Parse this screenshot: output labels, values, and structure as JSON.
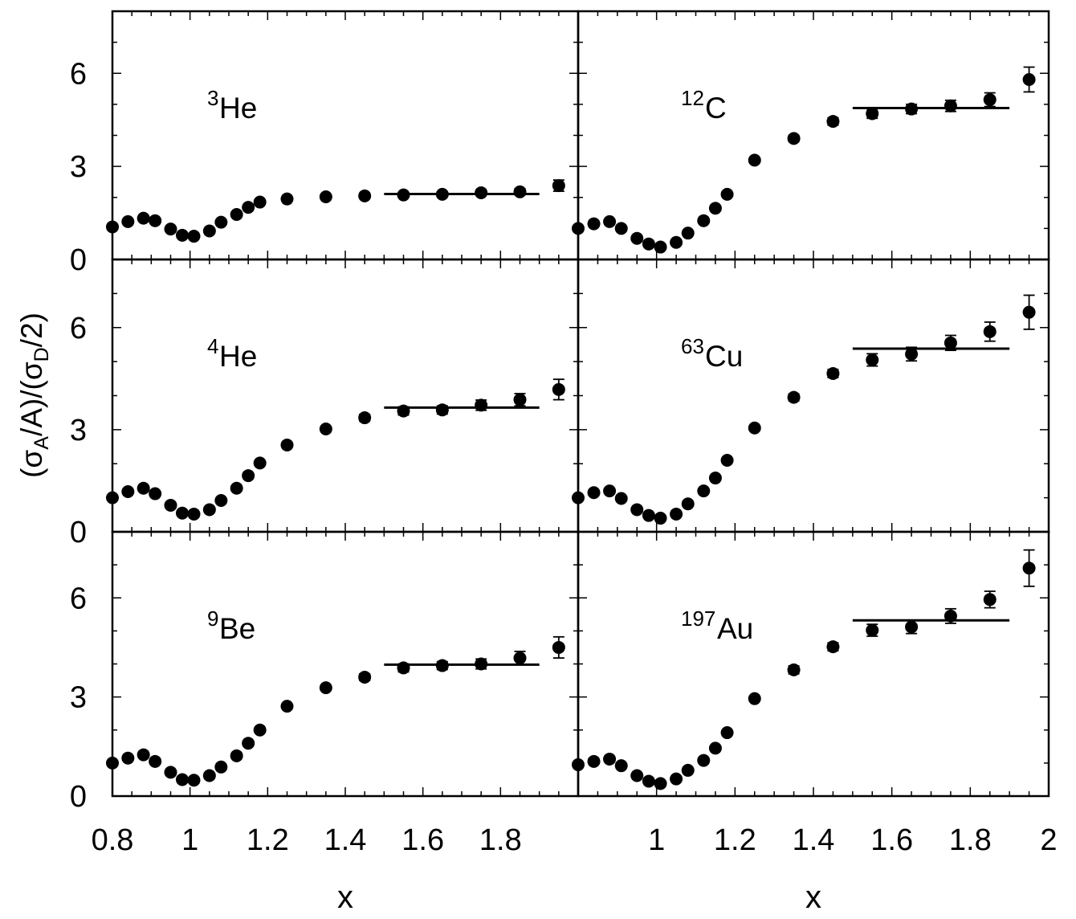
{
  "chart_data": {
    "type": "scatter",
    "ylabel_parts": {
      "open": "(σ",
      "sub_a": "A",
      "mid": "/A)/(σ",
      "sub_d": "D",
      "close": "/2)"
    },
    "columns": [
      {
        "xlabel": "x",
        "xlim": [
          0.8,
          2.0
        ],
        "xticks_major": [
          0.8,
          1.0,
          1.2,
          1.4,
          1.6,
          1.8
        ],
        "xtick_labels": [
          "0.8",
          "1",
          "1.2",
          "1.4",
          "1.6",
          "1.8"
        ]
      },
      {
        "xlabel": "x",
        "xlim": [
          0.8,
          2.0
        ],
        "xticks_major": [
          1.0,
          1.2,
          1.4,
          1.6,
          1.8,
          2.0
        ],
        "xtick_labels": [
          "1",
          "1.2",
          "1.4",
          "1.6",
          "1.8",
          "2"
        ]
      }
    ],
    "rows": [
      {
        "ylim": [
          0,
          8
        ],
        "yticks": [
          0,
          3,
          6
        ],
        "ytick_labels": [
          "0",
          "3",
          "6"
        ]
      },
      {
        "ylim": [
          0,
          8
        ],
        "yticks": [
          0,
          3,
          6
        ],
        "ytick_labels": [
          "0",
          "3",
          "6"
        ]
      },
      {
        "ylim": [
          0,
          8
        ],
        "yticks": [
          0,
          3,
          6
        ],
        "ytick_labels": [
          "0",
          "3",
          "6"
        ]
      }
    ],
    "panels": [
      {
        "row": 0,
        "col": 0,
        "label_sup": "3",
        "label_main": "He",
        "points": [
          {
            "x": 0.8,
            "y": 1.05,
            "err": 0.05
          },
          {
            "x": 0.84,
            "y": 1.22,
            "err": 0.05
          },
          {
            "x": 0.88,
            "y": 1.33,
            "err": 0.05
          },
          {
            "x": 0.91,
            "y": 1.25,
            "err": 0.05
          },
          {
            "x": 0.95,
            "y": 0.98,
            "err": 0.05
          },
          {
            "x": 0.98,
            "y": 0.78,
            "err": 0.05
          },
          {
            "x": 1.01,
            "y": 0.75,
            "err": 0.05
          },
          {
            "x": 1.05,
            "y": 0.92,
            "err": 0.05
          },
          {
            "x": 1.08,
            "y": 1.2,
            "err": 0.05
          },
          {
            "x": 1.12,
            "y": 1.45,
            "err": 0.05
          },
          {
            "x": 1.15,
            "y": 1.68,
            "err": 0.05
          },
          {
            "x": 1.18,
            "y": 1.85,
            "err": 0.05
          },
          {
            "x": 1.25,
            "y": 1.95,
            "err": 0.05
          },
          {
            "x": 1.35,
            "y": 2.02,
            "err": 0.05
          },
          {
            "x": 1.45,
            "y": 2.05,
            "err": 0.06
          },
          {
            "x": 1.55,
            "y": 2.08,
            "err": 0.07
          },
          {
            "x": 1.65,
            "y": 2.1,
            "err": 0.07
          },
          {
            "x": 1.75,
            "y": 2.15,
            "err": 0.08
          },
          {
            "x": 1.85,
            "y": 2.18,
            "err": 0.1
          },
          {
            "x": 1.95,
            "y": 2.38,
            "err": 0.18
          }
        ],
        "plateau": {
          "x1": 1.5,
          "x2": 1.9,
          "y": 2.11
        }
      },
      {
        "row": 0,
        "col": 1,
        "label_sup": "12",
        "label_main": "C",
        "points": [
          {
            "x": 0.8,
            "y": 1.0,
            "err": 0.05
          },
          {
            "x": 0.84,
            "y": 1.15,
            "err": 0.05
          },
          {
            "x": 0.88,
            "y": 1.22,
            "err": 0.05
          },
          {
            "x": 0.91,
            "y": 1.0,
            "err": 0.05
          },
          {
            "x": 0.95,
            "y": 0.68,
            "err": 0.05
          },
          {
            "x": 0.98,
            "y": 0.5,
            "err": 0.05
          },
          {
            "x": 1.01,
            "y": 0.4,
            "err": 0.05
          },
          {
            "x": 1.05,
            "y": 0.55,
            "err": 0.05
          },
          {
            "x": 1.08,
            "y": 0.85,
            "err": 0.05
          },
          {
            "x": 1.12,
            "y": 1.25,
            "err": 0.05
          },
          {
            "x": 1.15,
            "y": 1.65,
            "err": 0.05
          },
          {
            "x": 1.18,
            "y": 2.1,
            "err": 0.05
          },
          {
            "x": 1.25,
            "y": 3.2,
            "err": 0.08
          },
          {
            "x": 1.35,
            "y": 3.9,
            "err": 0.1
          },
          {
            "x": 1.45,
            "y": 4.45,
            "err": 0.12
          },
          {
            "x": 1.55,
            "y": 4.7,
            "err": 0.15
          },
          {
            "x": 1.65,
            "y": 4.85,
            "err": 0.15
          },
          {
            "x": 1.75,
            "y": 4.95,
            "err": 0.18
          },
          {
            "x": 1.85,
            "y": 5.15,
            "err": 0.22
          },
          {
            "x": 1.95,
            "y": 5.8,
            "err": 0.4
          }
        ],
        "plateau": {
          "x1": 1.5,
          "x2": 1.9,
          "y": 4.88
        }
      },
      {
        "row": 1,
        "col": 0,
        "label_sup": "4",
        "label_main": "He",
        "points": [
          {
            "x": 0.8,
            "y": 1.0,
            "err": 0.05
          },
          {
            "x": 0.84,
            "y": 1.18,
            "err": 0.05
          },
          {
            "x": 0.88,
            "y": 1.28,
            "err": 0.05
          },
          {
            "x": 0.91,
            "y": 1.12,
            "err": 0.05
          },
          {
            "x": 0.95,
            "y": 0.78,
            "err": 0.05
          },
          {
            "x": 0.98,
            "y": 0.55,
            "err": 0.05
          },
          {
            "x": 1.01,
            "y": 0.52,
            "err": 0.05
          },
          {
            "x": 1.05,
            "y": 0.65,
            "err": 0.05
          },
          {
            "x": 1.08,
            "y": 0.92,
            "err": 0.05
          },
          {
            "x": 1.12,
            "y": 1.28,
            "err": 0.05
          },
          {
            "x": 1.15,
            "y": 1.65,
            "err": 0.05
          },
          {
            "x": 1.18,
            "y": 2.02,
            "err": 0.05
          },
          {
            "x": 1.25,
            "y": 2.55,
            "err": 0.07
          },
          {
            "x": 1.35,
            "y": 3.02,
            "err": 0.08
          },
          {
            "x": 1.45,
            "y": 3.35,
            "err": 0.1
          },
          {
            "x": 1.55,
            "y": 3.55,
            "err": 0.12
          },
          {
            "x": 1.65,
            "y": 3.58,
            "err": 0.12
          },
          {
            "x": 1.75,
            "y": 3.72,
            "err": 0.15
          },
          {
            "x": 1.85,
            "y": 3.88,
            "err": 0.18
          },
          {
            "x": 1.95,
            "y": 4.18,
            "err": 0.3
          }
        ],
        "plateau": {
          "x1": 1.5,
          "x2": 1.9,
          "y": 3.65
        }
      },
      {
        "row": 1,
        "col": 1,
        "label_sup": "63",
        "label_main": "Cu",
        "points": [
          {
            "x": 0.8,
            "y": 1.0,
            "err": 0.05
          },
          {
            "x": 0.84,
            "y": 1.15,
            "err": 0.05
          },
          {
            "x": 0.88,
            "y": 1.2,
            "err": 0.05
          },
          {
            "x": 0.91,
            "y": 0.98,
            "err": 0.05
          },
          {
            "x": 0.95,
            "y": 0.65,
            "err": 0.05
          },
          {
            "x": 0.98,
            "y": 0.48,
            "err": 0.05
          },
          {
            "x": 1.01,
            "y": 0.4,
            "err": 0.05
          },
          {
            "x": 1.05,
            "y": 0.52,
            "err": 0.05
          },
          {
            "x": 1.08,
            "y": 0.82,
            "err": 0.05
          },
          {
            "x": 1.12,
            "y": 1.2,
            "err": 0.05
          },
          {
            "x": 1.15,
            "y": 1.58,
            "err": 0.05
          },
          {
            "x": 1.18,
            "y": 2.1,
            "err": 0.05
          },
          {
            "x": 1.25,
            "y": 3.05,
            "err": 0.08
          },
          {
            "x": 1.35,
            "y": 3.95,
            "err": 0.1
          },
          {
            "x": 1.45,
            "y": 4.65,
            "err": 0.12
          },
          {
            "x": 1.55,
            "y": 5.05,
            "err": 0.18
          },
          {
            "x": 1.65,
            "y": 5.22,
            "err": 0.2
          },
          {
            "x": 1.75,
            "y": 5.55,
            "err": 0.22
          },
          {
            "x": 1.85,
            "y": 5.88,
            "err": 0.28
          },
          {
            "x": 1.95,
            "y": 6.45,
            "err": 0.5
          }
        ],
        "plateau": {
          "x1": 1.5,
          "x2": 1.9,
          "y": 5.38
        }
      },
      {
        "row": 2,
        "col": 0,
        "label_sup": "9",
        "label_main": "Be",
        "points": [
          {
            "x": 0.8,
            "y": 1.0,
            "err": 0.05
          },
          {
            "x": 0.84,
            "y": 1.15,
            "err": 0.05
          },
          {
            "x": 0.88,
            "y": 1.25,
            "err": 0.05
          },
          {
            "x": 0.91,
            "y": 1.05,
            "err": 0.05
          },
          {
            "x": 0.95,
            "y": 0.72,
            "err": 0.05
          },
          {
            "x": 0.98,
            "y": 0.5,
            "err": 0.05
          },
          {
            "x": 1.01,
            "y": 0.48,
            "err": 0.05
          },
          {
            "x": 1.05,
            "y": 0.62,
            "err": 0.05
          },
          {
            "x": 1.08,
            "y": 0.88,
            "err": 0.05
          },
          {
            "x": 1.12,
            "y": 1.22,
            "err": 0.05
          },
          {
            "x": 1.15,
            "y": 1.6,
            "err": 0.05
          },
          {
            "x": 1.18,
            "y": 2.0,
            "err": 0.05
          },
          {
            "x": 1.25,
            "y": 2.72,
            "err": 0.07
          },
          {
            "x": 1.35,
            "y": 3.28,
            "err": 0.08
          },
          {
            "x": 1.45,
            "y": 3.6,
            "err": 0.1
          },
          {
            "x": 1.55,
            "y": 3.88,
            "err": 0.12
          },
          {
            "x": 1.65,
            "y": 3.95,
            "err": 0.12
          },
          {
            "x": 1.75,
            "y": 4.0,
            "err": 0.15
          },
          {
            "x": 1.85,
            "y": 4.18,
            "err": 0.2
          },
          {
            "x": 1.95,
            "y": 4.5,
            "err": 0.32
          }
        ],
        "plateau": {
          "x1": 1.5,
          "x2": 1.9,
          "y": 3.98
        }
      },
      {
        "row": 2,
        "col": 1,
        "label_sup": "197",
        "label_main": "Au",
        "points": [
          {
            "x": 0.8,
            "y": 0.95,
            "err": 0.05
          },
          {
            "x": 0.84,
            "y": 1.05,
            "err": 0.05
          },
          {
            "x": 0.88,
            "y": 1.12,
            "err": 0.05
          },
          {
            "x": 0.91,
            "y": 0.92,
            "err": 0.05
          },
          {
            "x": 0.95,
            "y": 0.62,
            "err": 0.05
          },
          {
            "x": 0.98,
            "y": 0.45,
            "err": 0.05
          },
          {
            "x": 1.01,
            "y": 0.38,
            "err": 0.05
          },
          {
            "x": 1.05,
            "y": 0.52,
            "err": 0.05
          },
          {
            "x": 1.08,
            "y": 0.78,
            "err": 0.05
          },
          {
            "x": 1.12,
            "y": 1.08,
            "err": 0.05
          },
          {
            "x": 1.15,
            "y": 1.45,
            "err": 0.05
          },
          {
            "x": 1.18,
            "y": 1.92,
            "err": 0.05
          },
          {
            "x": 1.25,
            "y": 2.95,
            "err": 0.08
          },
          {
            "x": 1.35,
            "y": 3.82,
            "err": 0.12
          },
          {
            "x": 1.45,
            "y": 4.52,
            "err": 0.12
          },
          {
            "x": 1.55,
            "y": 5.02,
            "err": 0.18
          },
          {
            "x": 1.65,
            "y": 5.12,
            "err": 0.2
          },
          {
            "x": 1.75,
            "y": 5.45,
            "err": 0.22
          },
          {
            "x": 1.85,
            "y": 5.95,
            "err": 0.25
          },
          {
            "x": 1.95,
            "y": 6.9,
            "err": 0.55
          }
        ],
        "plateau": {
          "x1": 1.5,
          "x2": 1.9,
          "y": 5.32
        }
      }
    ]
  }
}
